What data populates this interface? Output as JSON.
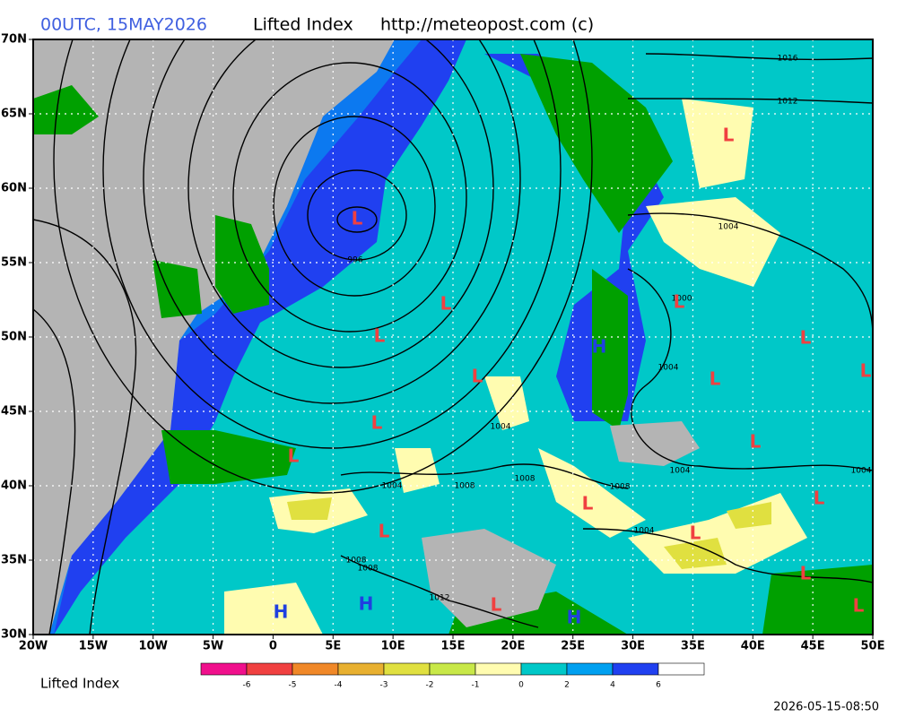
{
  "header": {
    "run": "00UTC, 15MAY2026",
    "field": "Lifted Index",
    "source": "http://meteopost.com (c)"
  },
  "map": {
    "lat_labels": [
      "70N",
      "65N",
      "60N",
      "55N",
      "50N",
      "45N",
      "40N",
      "35N",
      "30N"
    ],
    "lon_labels": [
      "20W",
      "15W",
      "10W",
      "5W",
      "0",
      "5E",
      "10E",
      "15E",
      "20E",
      "25E",
      "30E",
      "35E",
      "40E",
      "45E",
      "50E"
    ],
    "isobar_labels": [
      "1016",
      "1012",
      "1004",
      "996",
      "1000",
      "1004",
      "1004",
      "1004",
      "1008",
      "1008",
      "1008",
      "1004",
      "1004",
      "1004",
      "1008",
      "1008",
      "1012"
    ],
    "pressure_centers": [
      "L",
      "L",
      "L",
      "L",
      "L",
      "L",
      "L",
      "L",
      "L",
      "L",
      "L",
      "L",
      "L",
      "L",
      "L",
      "L",
      "L",
      "L",
      "L",
      "H",
      "H",
      "H",
      "H"
    ]
  },
  "legend": {
    "label": "Lifted Index",
    "colors": [
      "#f0108c",
      "#f04040",
      "#f08828",
      "#e8b030",
      "#e0e040",
      "#c8e848",
      "#fffcb0",
      "#00c8c8",
      "#00a0f0",
      "#2040f0",
      "#ffffff"
    ],
    "ticks": [
      -6,
      -5,
      -4,
      -3,
      -2,
      -1,
      0,
      2,
      4,
      6
    ]
  },
  "footer": {
    "timestamp": "2026-05-15-08:50"
  }
}
